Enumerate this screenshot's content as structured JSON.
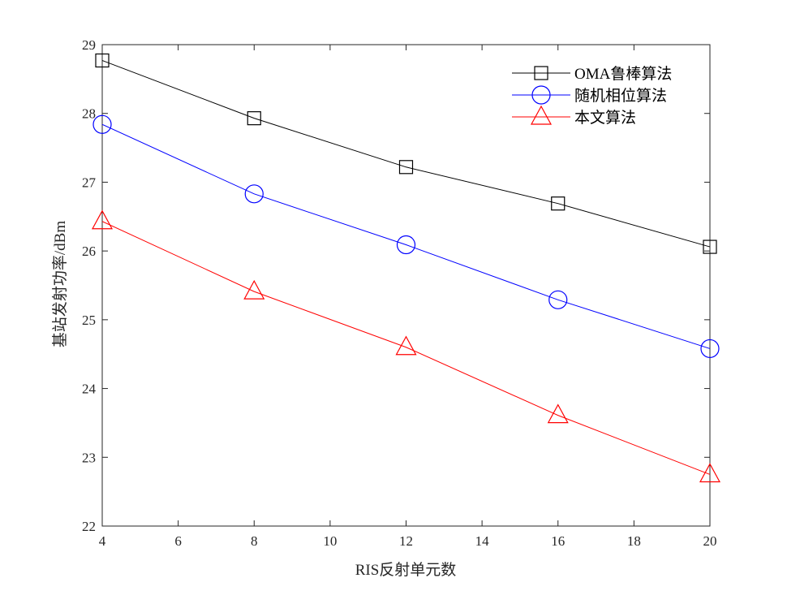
{
  "chart_data": {
    "type": "line",
    "xlabel": "RIS反射单元数",
    "ylabel": "基站发射功率/dBm",
    "xlim": [
      4,
      20
    ],
    "ylim": [
      22,
      29
    ],
    "xticks": [
      4,
      6,
      8,
      10,
      12,
      14,
      16,
      18,
      20
    ],
    "yticks": [
      22,
      23,
      24,
      25,
      26,
      27,
      28,
      29
    ],
    "grid": false,
    "legend_position": "top-right",
    "x": [
      4,
      8,
      12,
      16,
      20
    ],
    "series": [
      {
        "name": "OMA鲁棒算法",
        "marker": "square",
        "color": "#000000",
        "values": [
          28.77,
          27.93,
          27.22,
          26.69,
          26.06
        ]
      },
      {
        "name": "随机相位算法",
        "marker": "circle",
        "color": "#0000ff",
        "values": [
          27.84,
          26.83,
          26.09,
          25.29,
          24.58
        ]
      },
      {
        "name": "本文算法",
        "marker": "triangle",
        "color": "#ff0000",
        "values": [
          26.43,
          25.41,
          24.6,
          23.61,
          22.75
        ]
      }
    ]
  }
}
